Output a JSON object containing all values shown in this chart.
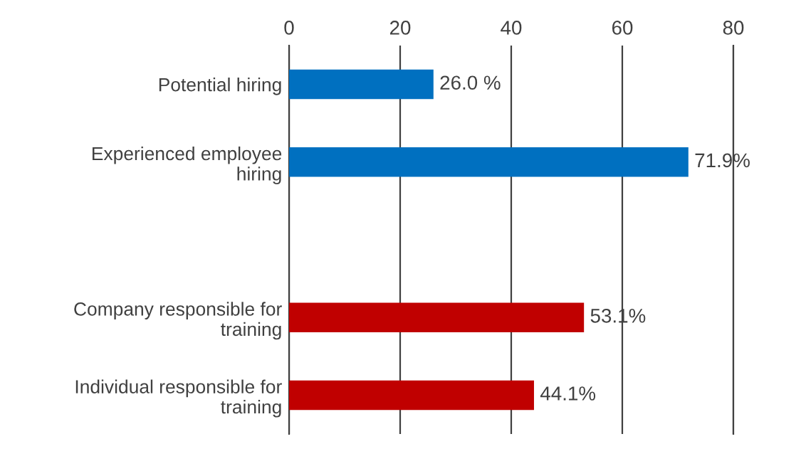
{
  "chart_data": {
    "type": "bar",
    "orientation": "horizontal",
    "categories": [
      "Potential hiring",
      "Experienced employee hiring",
      null,
      "Company responsible for training",
      "Individual responsible for training"
    ],
    "values": [
      26.0,
      71.9,
      null,
      53.1,
      44.1
    ],
    "colors": [
      "#0070c0",
      "#0070c0",
      null,
      "#c00000",
      "#c00000"
    ],
    "value_labels": [
      "26.0 %",
      "71.9%",
      null,
      "53.1%",
      "44.1%"
    ],
    "xlim": [
      0,
      80
    ],
    "xticks": [
      0,
      20,
      40,
      60,
      80
    ],
    "grid": "x",
    "legend": false
  }
}
